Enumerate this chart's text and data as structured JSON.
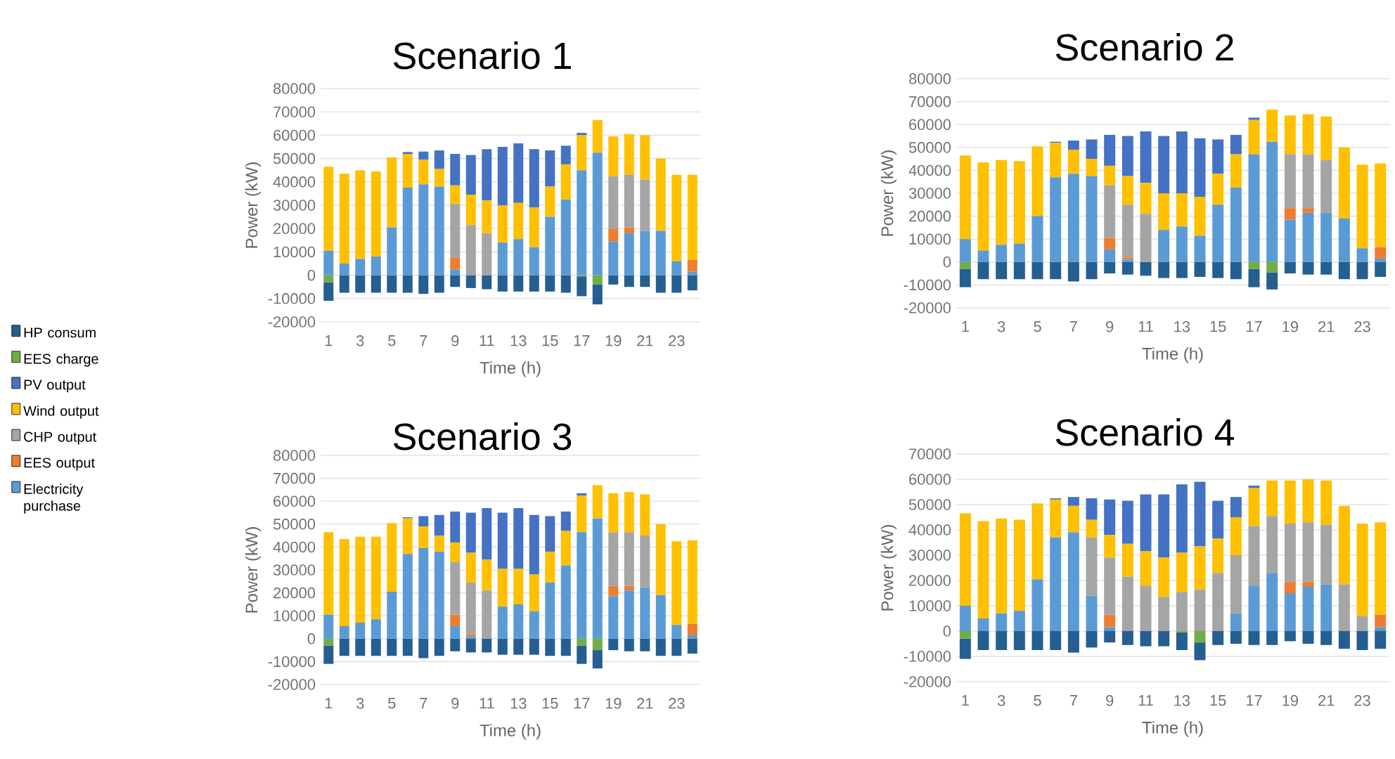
{
  "chart_data": [
    {
      "type": "bar",
      "stacked": true,
      "title": "Scenario 1",
      "xlabel": "Time (h)",
      "ylabel": "Power (kW)",
      "grid": "y",
      "legend": "left",
      "categories": [
        "1",
        null,
        "3",
        null,
        "5",
        null,
        "7",
        null,
        "9",
        null,
        "11",
        null,
        "13",
        null,
        "15",
        null,
        "17",
        null,
        "19",
        null,
        "21",
        null,
        "23",
        null
      ],
      "ylim": [
        -20000,
        80000
      ],
      "yticks": [
        -20000,
        -10000,
        0,
        10000,
        20000,
        30000,
        40000,
        50000,
        60000,
        70000,
        80000
      ],
      "series": [
        {
          "name": "Electricity purchase",
          "color": "#5b9bd5",
          "values": [
            10500,
            5000,
            7000,
            8000,
            20500,
            37500,
            39000,
            38000,
            2500,
            0,
            0,
            14000,
            15500,
            12000,
            25000,
            32500,
            45000,
            52500,
            14500,
            18000,
            19000,
            19000,
            6000,
            1500
          ]
        },
        {
          "name": "EES output",
          "color": "#ed7d31",
          "values": [
            0,
            0,
            0,
            0,
            0,
            0,
            0,
            0,
            5000,
            0,
            0,
            0,
            0,
            0,
            0,
            0,
            0,
            0,
            5500,
            2500,
            0,
            0,
            0,
            5000
          ]
        },
        {
          "name": "CHP output",
          "color": "#a5a5a5",
          "values": [
            0,
            0,
            0,
            0,
            0,
            0,
            0,
            0,
            23000,
            21500,
            18000,
            0,
            0,
            0,
            0,
            0,
            0,
            0,
            22500,
            22500,
            22000,
            0,
            0,
            0
          ]
        },
        {
          "name": "Wind output",
          "color": "#ffc000",
          "values": [
            36000,
            38500,
            38000,
            36500,
            30000,
            14500,
            10500,
            7500,
            8000,
            13000,
            14000,
            16000,
            15500,
            17000,
            13000,
            15000,
            15000,
            14000,
            17000,
            17500,
            19000,
            31000,
            37000,
            36500
          ]
        },
        {
          "name": "PV output",
          "color": "#4472c4",
          "values": [
            0,
            0,
            0,
            0,
            0,
            800,
            3500,
            8000,
            13500,
            17000,
            22000,
            25000,
            25500,
            25000,
            15500,
            8000,
            1000,
            0,
            0,
            0,
            0,
            0,
            0,
            0
          ]
        },
        {
          "name": "EES charge",
          "color": "#70ad47",
          "values": [
            -3000,
            0,
            0,
            0,
            0,
            0,
            0,
            0,
            0,
            0,
            0,
            0,
            0,
            0,
            0,
            0,
            -500,
            -4000,
            0,
            0,
            0,
            0,
            0,
            0
          ]
        },
        {
          "name": "HP consum",
          "color": "#255e91",
          "values": [
            -8000,
            -7500,
            -7500,
            -7500,
            -7500,
            -7500,
            -8000,
            -7500,
            -5000,
            -5500,
            -6000,
            -7000,
            -7000,
            -7000,
            -7000,
            -7500,
            -8500,
            -8500,
            -4000,
            -5000,
            -5000,
            -7500,
            -7500,
            -6500
          ]
        }
      ]
    },
    {
      "type": "bar",
      "stacked": true,
      "title": "Scenario 2",
      "xlabel": "Time  (h)",
      "ylabel": "Power (kW)",
      "grid": "y",
      "categories": [
        "1",
        null,
        "3",
        null,
        "5",
        null,
        "7",
        null,
        "9",
        null,
        "11",
        null,
        "13",
        null,
        "15",
        null,
        "17",
        null,
        "19",
        null,
        "21",
        null,
        "23",
        null
      ],
      "ylim": [
        -20000,
        80000
      ],
      "yticks": [
        -20000,
        -10000,
        0,
        10000,
        20000,
        30000,
        40000,
        50000,
        60000,
        70000,
        80000
      ],
      "series": [
        {
          "color": "#5b9bd5",
          "values": [
            10000,
            5000,
            7500,
            8000,
            20000,
            37000,
            38500,
            37500,
            5500,
            1000,
            0,
            14000,
            15500,
            11500,
            25000,
            32500,
            47000,
            52500,
            18500,
            21500,
            21500,
            19000,
            6000,
            1500
          ]
        },
        {
          "color": "#ed7d31",
          "values": [
            0,
            0,
            0,
            0,
            0,
            0,
            0,
            0,
            5000,
            1000,
            0,
            0,
            0,
            0,
            0,
            0,
            0,
            0,
            5000,
            2000,
            0,
            0,
            0,
            5000
          ]
        },
        {
          "color": "#a5a5a5",
          "values": [
            0,
            0,
            0,
            0,
            0,
            0,
            0,
            0,
            23000,
            23000,
            21000,
            0,
            0,
            0,
            0,
            0,
            0,
            0,
            23500,
            23500,
            23000,
            0,
            0,
            0
          ]
        },
        {
          "color": "#ffc000",
          "values": [
            36500,
            38500,
            37000,
            36000,
            30500,
            15000,
            10500,
            7500,
            8500,
            12500,
            13500,
            16000,
            14500,
            17000,
            13500,
            14500,
            15000,
            14000,
            17000,
            17500,
            19000,
            31000,
            36500,
            36500
          ]
        },
        {
          "color": "#4472c4",
          "values": [
            0,
            0,
            0,
            0,
            0,
            500,
            4000,
            8500,
            13500,
            17500,
            22500,
            25000,
            27000,
            25500,
            15000,
            8500,
            1000,
            0,
            0,
            0,
            0,
            0,
            0,
            0
          ]
        },
        {
          "color": "#70ad47",
          "values": [
            -3000,
            0,
            0,
            0,
            0,
            0,
            0,
            0,
            0,
            0,
            0,
            0,
            0,
            0,
            0,
            0,
            -3000,
            -4500,
            0,
            0,
            0,
            0,
            0,
            0
          ]
        },
        {
          "color": "#255e91",
          "values": [
            -8000,
            -7500,
            -7500,
            -7500,
            -7500,
            -7500,
            -8500,
            -7500,
            -5000,
            -5500,
            -6000,
            -7000,
            -7000,
            -6500,
            -7000,
            -7500,
            -8000,
            -7500,
            -5000,
            -5500,
            -5500,
            -7500,
            -7500,
            -6500
          ]
        }
      ]
    },
    {
      "type": "bar",
      "stacked": true,
      "title": "Scenario 3",
      "xlabel": "Time (h)",
      "ylabel": "Power (kW)",
      "grid": "y",
      "categories": [
        "1",
        null,
        "3",
        null,
        "5",
        null,
        "7",
        null,
        "9",
        null,
        "11",
        null,
        "13",
        null,
        "15",
        null,
        "17",
        null,
        "19",
        null,
        "21",
        null,
        "23",
        null
      ],
      "ylim": [
        -20000,
        80000
      ],
      "yticks": [
        -20000,
        -10000,
        0,
        10000,
        20000,
        30000,
        40000,
        50000,
        60000,
        70000,
        80000
      ],
      "series": [
        {
          "color": "#5b9bd5",
          "values": [
            10500,
            5500,
            7000,
            8500,
            20500,
            37000,
            39500,
            38000,
            5500,
            1000,
            0,
            14000,
            15000,
            12000,
            24500,
            32000,
            46500,
            52500,
            18500,
            21000,
            22000,
            19000,
            6000,
            1500
          ]
        },
        {
          "color": "#ed7d31",
          "values": [
            0,
            0,
            0,
            0,
            0,
            0,
            0,
            0,
            5000,
            1000,
            0,
            0,
            0,
            0,
            0,
            0,
            0,
            0,
            4500,
            2000,
            0,
            0,
            0,
            5000
          ]
        },
        {
          "color": "#a5a5a5",
          "values": [
            0,
            0,
            0,
            0,
            0,
            0,
            0,
            0,
            23000,
            22500,
            21000,
            0,
            0,
            0,
            0,
            0,
            0,
            0,
            23500,
            23500,
            23000,
            0,
            0,
            0
          ]
        },
        {
          "color": "#ffc000",
          "values": [
            36000,
            38000,
            37500,
            36000,
            30000,
            15500,
            9500,
            7000,
            8500,
            13000,
            13500,
            16500,
            15500,
            16000,
            13500,
            15000,
            16000,
            14500,
            17000,
            17500,
            18000,
            31000,
            36500,
            36500
          ]
        },
        {
          "color": "#4472c4",
          "values": [
            0,
            0,
            0,
            0,
            0,
            500,
            4500,
            9000,
            13500,
            17500,
            22500,
            24500,
            26500,
            26000,
            15500,
            8500,
            1000,
            0,
            0,
            0,
            0,
            0,
            0,
            0
          ]
        },
        {
          "color": "#70ad47",
          "values": [
            -3000,
            0,
            0,
            0,
            0,
            0,
            0,
            0,
            0,
            0,
            0,
            0,
            0,
            0,
            0,
            0,
            -3000,
            -5000,
            0,
            0,
            0,
            0,
            0,
            0
          ]
        },
        {
          "color": "#255e91",
          "values": [
            -8000,
            -7500,
            -7500,
            -7500,
            -7500,
            -7500,
            -8500,
            -7500,
            -5500,
            -6000,
            -6000,
            -7000,
            -7000,
            -7000,
            -7500,
            -7500,
            -8000,
            -8000,
            -5000,
            -5500,
            -5500,
            -7500,
            -7500,
            -6500
          ]
        }
      ]
    },
    {
      "type": "bar",
      "stacked": true,
      "title": "Scenario 4",
      "xlabel": "Time (h)",
      "ylabel": "Power (kW)",
      "grid": "y",
      "categories": [
        "1",
        null,
        "3",
        null,
        "5",
        null,
        "7",
        null,
        "9",
        null,
        "11",
        null,
        "13",
        null,
        "15",
        null,
        "17",
        null,
        "19",
        null,
        "21",
        null,
        "23",
        null
      ],
      "ylim": [
        -20000,
        70000
      ],
      "yticks": [
        -20000,
        -10000,
        0,
        10000,
        20000,
        30000,
        40000,
        50000,
        60000,
        70000
      ],
      "series": [
        {
          "color": "#5b9bd5",
          "values": [
            10000,
            5000,
            7000,
            8000,
            20500,
            37000,
            39000,
            14000,
            1500,
            0,
            0,
            0,
            0,
            0,
            0,
            7000,
            18000,
            23000,
            15000,
            17500,
            18500,
            0,
            0,
            1500
          ]
        },
        {
          "color": "#ed7d31",
          "values": [
            0,
            0,
            0,
            0,
            0,
            0,
            0,
            0,
            5000,
            0,
            0,
            0,
            0,
            0,
            0,
            0,
            0,
            0,
            4500,
            2000,
            0,
            0,
            0,
            5000
          ]
        },
        {
          "color": "#a5a5a5",
          "values": [
            0,
            0,
            0,
            0,
            0,
            0,
            0,
            23000,
            22500,
            21500,
            18000,
            13500,
            15500,
            16500,
            23000,
            23000,
            23500,
            22500,
            23000,
            23500,
            23500,
            18500,
            6000,
            0
          ]
        },
        {
          "color": "#ffc000",
          "values": [
            36500,
            38500,
            37500,
            36000,
            30000,
            15000,
            10500,
            7000,
            9000,
            13000,
            13500,
            15500,
            15500,
            17000,
            13500,
            15000,
            15000,
            14000,
            17000,
            17000,
            17500,
            31000,
            36500,
            36500
          ]
        },
        {
          "color": "#4472c4",
          "values": [
            0,
            0,
            0,
            0,
            0,
            500,
            3500,
            8500,
            14000,
            17000,
            22500,
            25000,
            27000,
            25500,
            15000,
            8000,
            1000,
            0,
            0,
            0,
            0,
            0,
            0,
            0
          ]
        },
        {
          "color": "#70ad47",
          "values": [
            -3000,
            0,
            0,
            0,
            0,
            0,
            0,
            0,
            0,
            0,
            0,
            0,
            -500,
            -4500,
            0,
            0,
            0,
            0,
            0,
            0,
            0,
            0,
            0,
            0
          ]
        },
        {
          "color": "#255e91",
          "values": [
            -8000,
            -7500,
            -7500,
            -7500,
            -7500,
            -7500,
            -8500,
            -6500,
            -4500,
            -5500,
            -6000,
            -6000,
            -7000,
            -7000,
            -5500,
            -5000,
            -5500,
            -5500,
            -4000,
            -5000,
            -5500,
            -7000,
            -7500,
            -7000
          ]
        }
      ]
    }
  ]
}
